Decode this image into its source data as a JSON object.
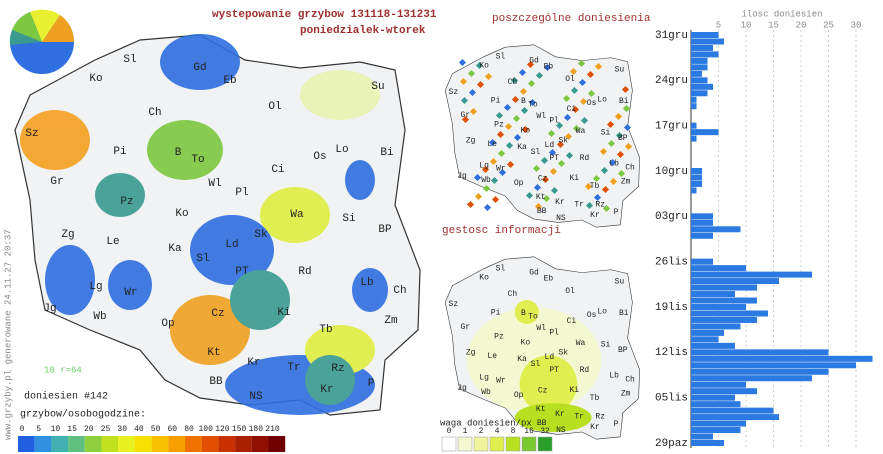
{
  "header": {
    "title": "wystepowanie grzybow 131118-131231",
    "subtitle": "poniedzialek-wtorek"
  },
  "side_note": "www.grzyby.pl generowane 24.11.27 20:37",
  "scale_note": "10 r=64",
  "map": {
    "regions": [
      "Sl",
      "Gd",
      "Eb",
      "Ko",
      "Su",
      "Ol",
      "Ch",
      "Sz",
      "Pi",
      "B",
      "To",
      "Ci",
      "Os",
      "Lo",
      "Bi",
      "Gr",
      "Wl",
      "Pl",
      "Pz",
      "Ko",
      "Wa",
      "Si",
      "Zg",
      "Le",
      "Ka",
      "Ld",
      "Sk",
      "BP",
      "Lg",
      "Sl",
      "PT",
      "Rd",
      "Lb",
      "Ch",
      "Wr",
      "Jg",
      "Wb",
      "Zm",
      "Op",
      "Cz",
      "Ki",
      "Tb",
      "Kt",
      "Kr",
      "Tr",
      "Rz",
      "BB",
      "NS",
      "Kr",
      "P"
    ]
  },
  "reports": {
    "title": "poszczególne doniesienia"
  },
  "density": {
    "title": "gestosc informacji",
    "legend_title": "waga doniesien/px",
    "legend": [
      {
        "value": 0,
        "color": "#ffffff"
      },
      {
        "value": 1,
        "color": "#f4f8d0"
      },
      {
        "value": 2,
        "color": "#eef59a"
      },
      {
        "value": 4,
        "color": "#e0ee50"
      },
      {
        "value": 8,
        "color": "#b8e020"
      },
      {
        "value": 16,
        "color": "#7cc830"
      },
      {
        "value": 32,
        "color": "#2aa02a"
      }
    ]
  },
  "main_legend": {
    "count_label": "doniesien #142",
    "title": "grzybow/osobogodzine:",
    "steps": [
      0,
      5,
      10,
      15,
      20,
      25,
      30,
      40,
      50,
      60,
      80,
      100,
      120,
      150,
      180,
      210
    ],
    "colors": [
      "#2060e0",
      "#3090e0",
      "#40b0b0",
      "#60c080",
      "#90d040",
      "#c0e020",
      "#e8f020",
      "#f8e000",
      "#f8c000",
      "#f8a000",
      "#f07000",
      "#e05000",
      "#c83000",
      "#a82000",
      "#901000",
      "#700000"
    ]
  },
  "chart_data": {
    "type": "bar",
    "orientation": "horizontal",
    "title": "ilosc doniesien",
    "color": "#2a7ae2",
    "xlim": [
      0,
      33
    ],
    "xticks": [
      5,
      10,
      15,
      20,
      25,
      30
    ],
    "categories": [
      "31gru",
      null,
      null,
      null,
      null,
      null,
      null,
      "24gru",
      null,
      null,
      null,
      null,
      null,
      null,
      "17gru",
      null,
      null,
      null,
      null,
      null,
      null,
      "10gru",
      null,
      null,
      null,
      null,
      null,
      null,
      "03gru",
      null,
      null,
      null,
      null,
      null,
      null,
      "26lis",
      null,
      null,
      null,
      null,
      null,
      null,
      "19lis",
      null,
      null,
      null,
      null,
      null,
      null,
      "12lis",
      null,
      null,
      null,
      null,
      null,
      null,
      "05lis",
      null,
      null,
      null,
      null,
      null,
      null,
      "29paz"
    ],
    "values": [
      5,
      6,
      4,
      5,
      3,
      3,
      2,
      3,
      4,
      3,
      1,
      1,
      0,
      0,
      1,
      5,
      1,
      0,
      0,
      0,
      0,
      2,
      2,
      2,
      1,
      0,
      0,
      0,
      4,
      4,
      9,
      4,
      0,
      0,
      0,
      4,
      10,
      22,
      16,
      12,
      8,
      12,
      10,
      14,
      12,
      9,
      6,
      5,
      8,
      25,
      33,
      30,
      25,
      22,
      10,
      12,
      8,
      9,
      15,
      16,
      10,
      9,
      4,
      6
    ]
  }
}
